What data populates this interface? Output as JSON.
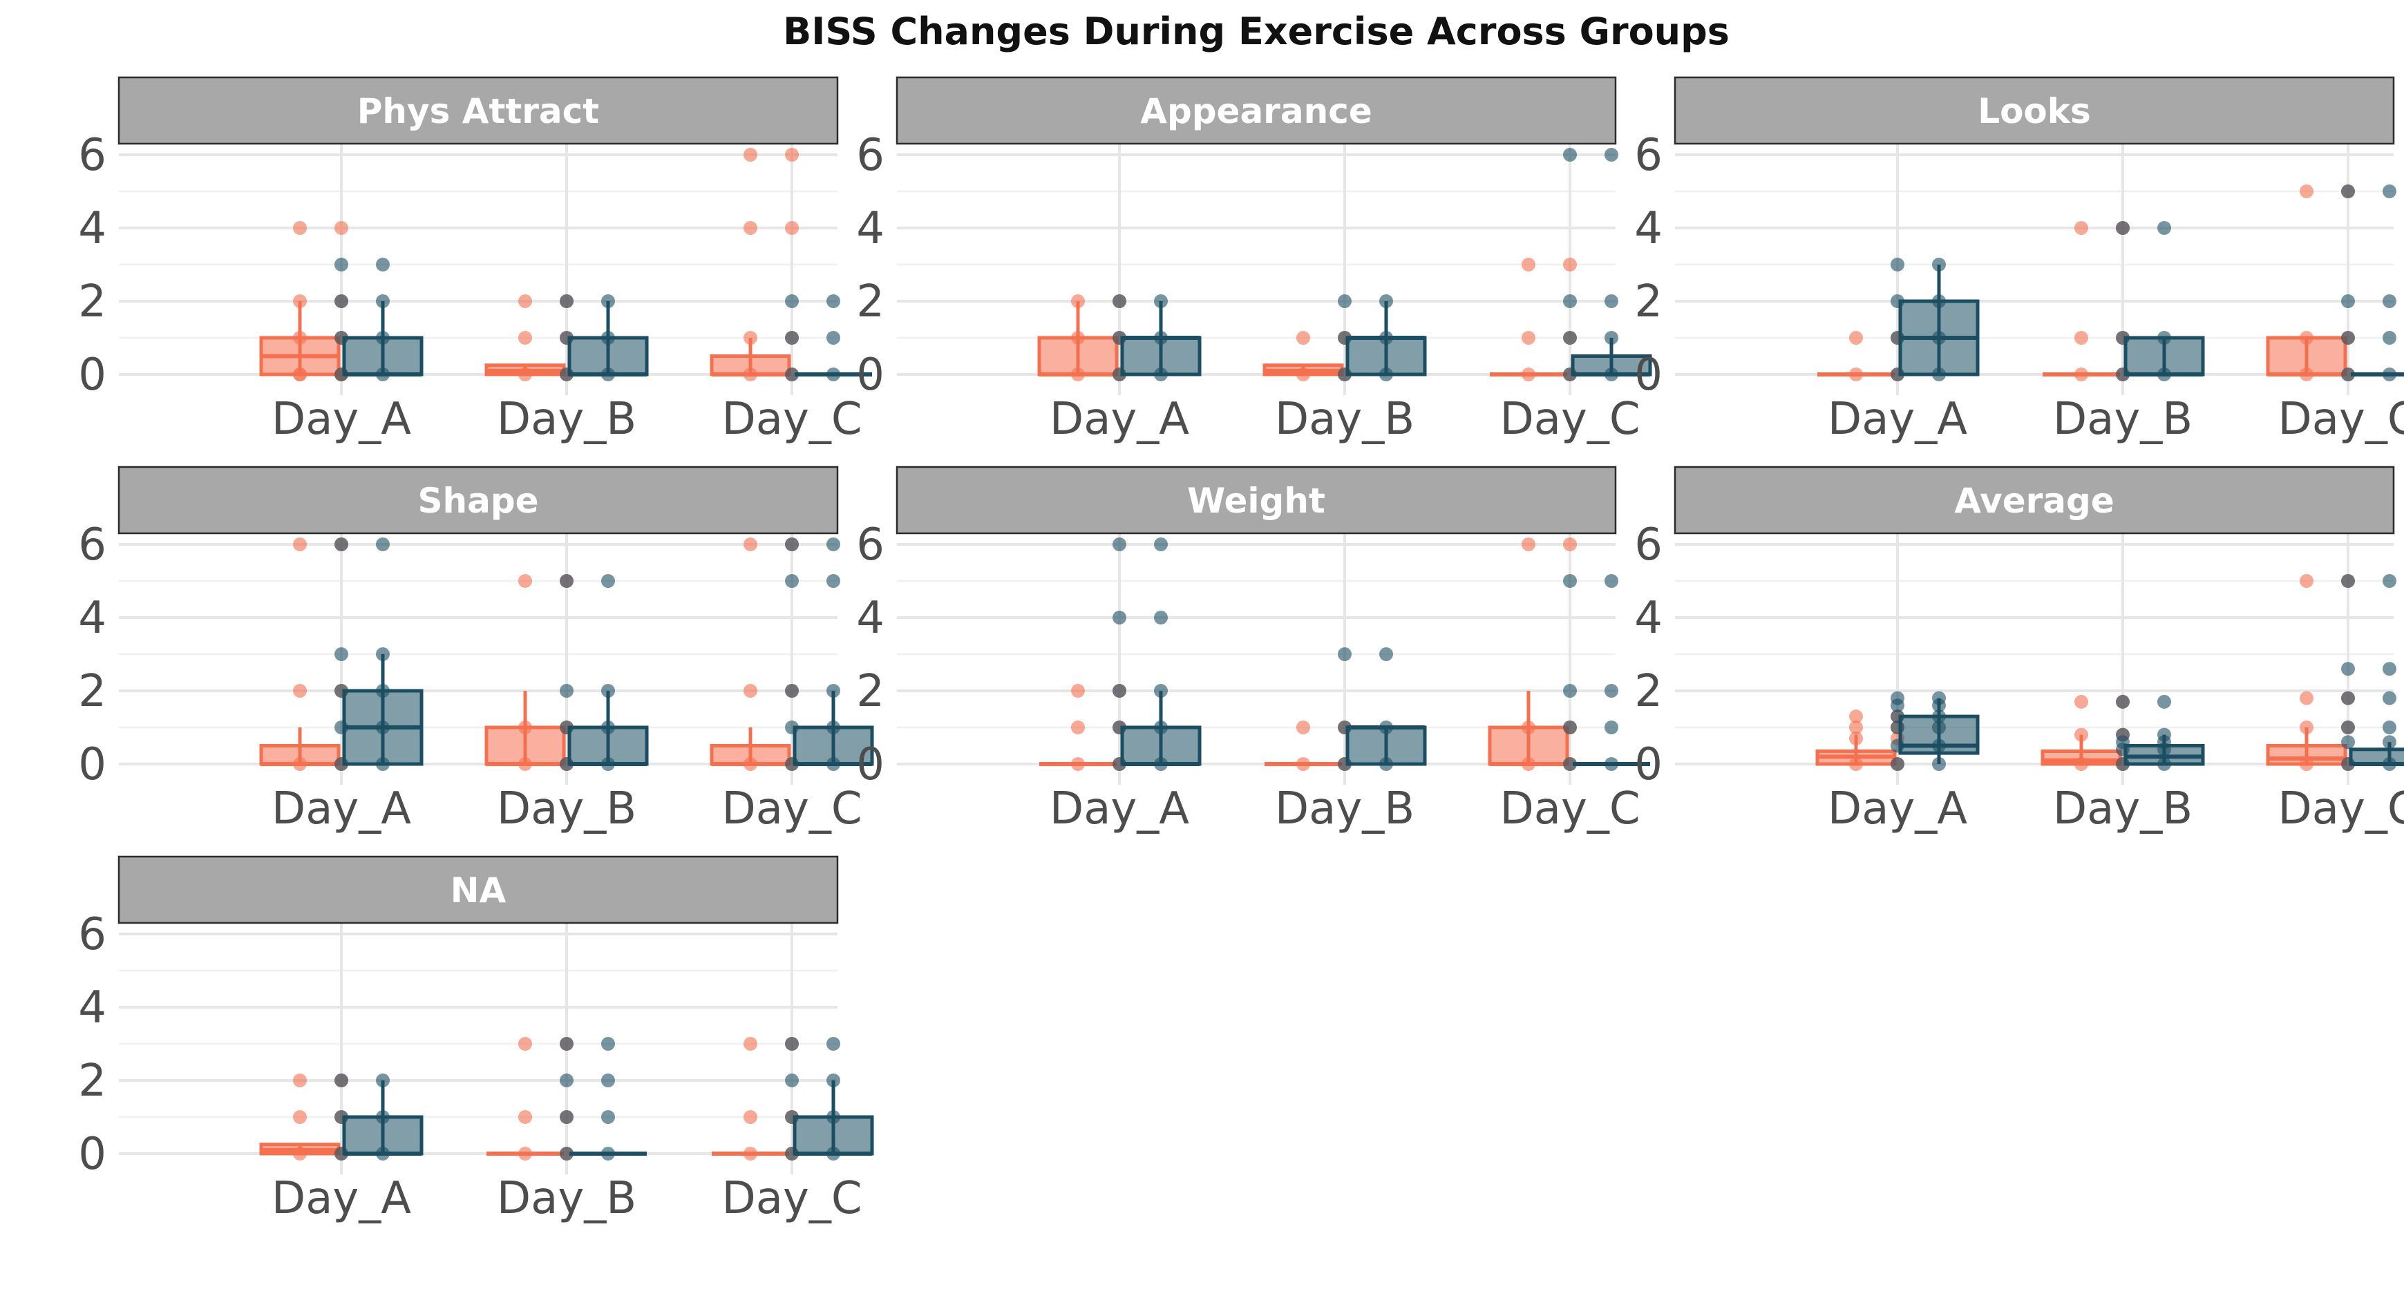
{
  "chart_data": {
    "type": "box",
    "title": "BISS Changes During Exercise Across Groups",
    "categories": [
      "Day_A",
      "Day_B",
      "Day_C"
    ],
    "y_ticks": [
      0,
      2,
      4,
      6
    ],
    "ylim": [
      0,
      6.2
    ],
    "grid": true,
    "series_colors": [
      "#f4704f",
      "#1c4e63"
    ],
    "panels": [
      {
        "label": "Phys Attract",
        "groups": [
          {
            "category": "Day_A",
            "series": [
              {
                "q1": 0,
                "median": 0.5,
                "q3": 1,
                "whisker_low": 0,
                "whisker_high": 2,
                "points": [
                  4,
                  2,
                  1,
                  0,
                  0
                ]
              },
              {
                "q1": 0,
                "median": 0,
                "q3": 1,
                "whisker_low": 0,
                "whisker_high": 2,
                "points": [
                  3,
                  2,
                  1,
                  0
                ]
              }
            ]
          },
          {
            "category": "Day_B",
            "series": [
              {
                "q1": 0,
                "median": 0.1,
                "q3": 0.25,
                "whisker_low": 0,
                "whisker_high": 0.25,
                "points": [
                  2,
                  1,
                  0
                ]
              },
              {
                "q1": 0,
                "median": 0,
                "q3": 1,
                "whisker_low": 0,
                "whisker_high": 2,
                "points": [
                  2,
                  1,
                  0
                ]
              }
            ]
          },
          {
            "category": "Day_C",
            "series": [
              {
                "q1": 0,
                "median": 0,
                "q3": 0.5,
                "whisker_low": 0,
                "whisker_high": 1,
                "points": [
                  6,
                  4,
                  1,
                  0
                ]
              },
              {
                "q1": 0,
                "median": 0,
                "q3": 0,
                "whisker_low": 0,
                "whisker_high": 0,
                "points": [
                  2,
                  1,
                  0
                ]
              }
            ]
          }
        ]
      },
      {
        "label": "Appearance",
        "groups": [
          {
            "category": "Day_A",
            "series": [
              {
                "q1": 0,
                "median": 0,
                "q3": 1,
                "whisker_low": 0,
                "whisker_high": 2,
                "points": [
                  2,
                  1,
                  0
                ]
              },
              {
                "q1": 0,
                "median": 1,
                "q3": 1,
                "whisker_low": 0,
                "whisker_high": 2,
                "points": [
                  2,
                  1,
                  0
                ]
              }
            ]
          },
          {
            "category": "Day_B",
            "series": [
              {
                "q1": 0,
                "median": 0.1,
                "q3": 0.25,
                "whisker_low": 0,
                "whisker_high": 0.25,
                "points": [
                  1,
                  0
                ]
              },
              {
                "q1": 0,
                "median": 1,
                "q3": 1,
                "whisker_low": 0,
                "whisker_high": 2,
                "points": [
                  2,
                  1,
                  0
                ]
              }
            ]
          },
          {
            "category": "Day_C",
            "series": [
              {
                "q1": 0,
                "median": 0,
                "q3": 0,
                "whisker_low": 0,
                "whisker_high": 0,
                "points": [
                  3,
                  1,
                  0
                ]
              },
              {
                "q1": 0,
                "median": 0,
                "q3": 0.5,
                "whisker_low": 0,
                "whisker_high": 1,
                "points": [
                  6,
                  2,
                  1,
                  0
                ]
              }
            ]
          }
        ]
      },
      {
        "label": "Looks",
        "groups": [
          {
            "category": "Day_A",
            "series": [
              {
                "q1": 0,
                "median": 0,
                "q3": 0,
                "whisker_low": 0,
                "whisker_high": 0,
                "points": [
                  1,
                  0
                ]
              },
              {
                "q1": 0,
                "median": 1,
                "q3": 2,
                "whisker_low": 0,
                "whisker_high": 3,
                "points": [
                  3,
                  2,
                  1,
                  0
                ]
              }
            ]
          },
          {
            "category": "Day_B",
            "series": [
              {
                "q1": 0,
                "median": 0,
                "q3": 0,
                "whisker_low": 0,
                "whisker_high": 0,
                "points": [
                  4,
                  1,
                  0
                ]
              },
              {
                "q1": 0,
                "median": 0,
                "q3": 1,
                "whisker_low": 0,
                "whisker_high": 1,
                "points": [
                  4,
                  1,
                  0
                ]
              }
            ]
          },
          {
            "category": "Day_C",
            "series": [
              {
                "q1": 0,
                "median": 0,
                "q3": 1,
                "whisker_low": 0,
                "whisker_high": 1,
                "points": [
                  5,
                  1,
                  0
                ]
              },
              {
                "q1": 0,
                "median": 0,
                "q3": 0,
                "whisker_low": 0,
                "whisker_high": 0,
                "points": [
                  5,
                  2,
                  1,
                  0
                ]
              }
            ]
          }
        ]
      },
      {
        "label": "Shape",
        "groups": [
          {
            "category": "Day_A",
            "series": [
              {
                "q1": 0,
                "median": 0,
                "q3": 0.5,
                "whisker_low": 0,
                "whisker_high": 1,
                "points": [
                  6,
                  2,
                  0
                ]
              },
              {
                "q1": 0,
                "median": 1,
                "q3": 2,
                "whisker_low": 0,
                "whisker_high": 3,
                "points": [
                  6,
                  3,
                  2,
                  1,
                  0
                ]
              }
            ]
          },
          {
            "category": "Day_B",
            "series": [
              {
                "q1": 0,
                "median": 0,
                "q3": 1,
                "whisker_low": 0,
                "whisker_high": 2,
                "points": [
                  5,
                  1,
                  0
                ]
              },
              {
                "q1": 0,
                "median": 0,
                "q3": 1,
                "whisker_low": 0,
                "whisker_high": 2,
                "points": [
                  5,
                  2,
                  1,
                  0
                ]
              }
            ]
          },
          {
            "category": "Day_C",
            "series": [
              {
                "q1": 0,
                "median": 0,
                "q3": 0.5,
                "whisker_low": 0,
                "whisker_high": 1,
                "points": [
                  6,
                  2,
                  0
                ]
              },
              {
                "q1": 0,
                "median": 0,
                "q3": 1,
                "whisker_low": 0,
                "whisker_high": 2,
                "points": [
                  6,
                  5,
                  2,
                  1,
                  0
                ]
              }
            ]
          }
        ]
      },
      {
        "label": "Weight",
        "groups": [
          {
            "category": "Day_A",
            "series": [
              {
                "q1": 0,
                "median": 0,
                "q3": 0,
                "whisker_low": 0,
                "whisker_high": 0,
                "points": [
                  2,
                  1,
                  0
                ]
              },
              {
                "q1": 0,
                "median": 0,
                "q3": 1,
                "whisker_low": 0,
                "whisker_high": 2,
                "points": [
                  6,
                  4,
                  2,
                  1,
                  0
                ]
              }
            ]
          },
          {
            "category": "Day_B",
            "series": [
              {
                "q1": 0,
                "median": 0,
                "q3": 0,
                "whisker_low": 0,
                "whisker_high": 0,
                "points": [
                  1,
                  0
                ]
              },
              {
                "q1": 0,
                "median": 1,
                "q3": 1,
                "whisker_low": 0,
                "whisker_high": 1,
                "points": [
                  3,
                  1,
                  0
                ]
              }
            ]
          },
          {
            "category": "Day_C",
            "series": [
              {
                "q1": 0,
                "median": 0,
                "q3": 1,
                "whisker_low": 0,
                "whisker_high": 2,
                "points": [
                  6,
                  1,
                  0
                ]
              },
              {
                "q1": 0,
                "median": 0,
                "q3": 0,
                "whisker_low": 0,
                "whisker_high": 0,
                "points": [
                  5,
                  2,
                  1,
                  0
                ]
              }
            ]
          }
        ]
      },
      {
        "label": "Average",
        "groups": [
          {
            "category": "Day_A",
            "series": [
              {
                "q1": 0,
                "median": 0.2,
                "q3": 0.35,
                "whisker_low": 0,
                "whisker_high": 0.8,
                "points": [
                  1.3,
                  1.0,
                  0.7,
                  0
                ]
              },
              {
                "q1": 0.3,
                "median": 0.5,
                "q3": 1.3,
                "whisker_low": 0,
                "whisker_high": 1.8,
                "points": [
                  1.8,
                  1.6,
                  1.3,
                  1.0,
                  0.5,
                  0
                ]
              }
            ]
          },
          {
            "category": "Day_B",
            "series": [
              {
                "q1": 0,
                "median": 0.1,
                "q3": 0.35,
                "whisker_low": 0,
                "whisker_high": 0.8,
                "points": [
                  1.7,
                  0.8,
                  0
                ]
              },
              {
                "q1": 0,
                "median": 0.2,
                "q3": 0.5,
                "whisker_low": 0,
                "whisker_high": 0.8,
                "points": [
                  1.7,
                  0.8,
                  0.6,
                  0.4,
                  0
                ]
              }
            ]
          },
          {
            "category": "Day_C",
            "series": [
              {
                "q1": 0,
                "median": 0.15,
                "q3": 0.5,
                "whisker_low": 0,
                "whisker_high": 1,
                "points": [
                  5,
                  1.8,
                  1.0,
                  0
                ]
              },
              {
                "q1": 0,
                "median": 0,
                "q3": 0.4,
                "whisker_low": 0,
                "whisker_high": 0.6,
                "points": [
                  5,
                  2.6,
                  1.8,
                  1.0,
                  0.6,
                  0
                ]
              }
            ]
          }
        ]
      },
      {
        "label": "NA",
        "groups": [
          {
            "category": "Day_A",
            "series": [
              {
                "q1": 0,
                "median": 0.1,
                "q3": 0.25,
                "whisker_low": 0,
                "whisker_high": 0.25,
                "points": [
                  2,
                  1,
                  0
                ]
              },
              {
                "q1": 0,
                "median": 0,
                "q3": 1,
                "whisker_low": 0,
                "whisker_high": 2,
                "points": [
                  2,
                  1,
                  0
                ]
              }
            ]
          },
          {
            "category": "Day_B",
            "series": [
              {
                "q1": 0,
                "median": 0,
                "q3": 0,
                "whisker_low": 0,
                "whisker_high": 0,
                "points": [
                  3,
                  1,
                  0
                ]
              },
              {
                "q1": 0,
                "median": 0,
                "q3": 0,
                "whisker_low": 0,
                "whisker_high": 0,
                "points": [
                  3,
                  2,
                  1,
                  0
                ]
              }
            ]
          },
          {
            "category": "Day_C",
            "series": [
              {
                "q1": 0,
                "median": 0,
                "q3": 0,
                "whisker_low": 0,
                "whisker_high": 0,
                "points": [
                  3,
                  1,
                  0
                ]
              },
              {
                "q1": 0,
                "median": 0,
                "q3": 1,
                "whisker_low": 0,
                "whisker_high": 2,
                "points": [
                  3,
                  2,
                  1,
                  0
                ]
              }
            ]
          }
        ]
      }
    ]
  }
}
